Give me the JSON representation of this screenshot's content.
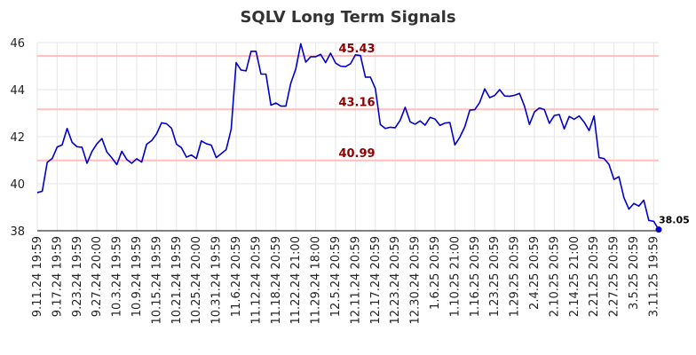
{
  "chart_data": {
    "type": "line",
    "title": "SQLV Long Term Signals",
    "xlabel": "",
    "ylabel": "",
    "ylim": [
      38,
      46
    ],
    "yticks": [
      38,
      40,
      42,
      44,
      46
    ],
    "grid": true,
    "x_tick_labels": [
      "9.11.24 19:59",
      "9.17.24 19:59",
      "9.23.24 19:59",
      "9.27.24 20:00",
      "10.3.24 19:59",
      "10.9.24 19:59",
      "10.15.24 19:59",
      "10.21.24 19:59",
      "10.25.24 20:00",
      "10.31.24 19:59",
      "11.6.24 20:59",
      "11.12.24 20:59",
      "11.18.24 20:59",
      "11.22.24 21:00",
      "11.29.24 18:00",
      "12.5.24 20:59",
      "12.11.24 20:59",
      "12.17.24 20:59",
      "12.23.24 20:59",
      "12.30.24 20:59",
      "1.6.25 20:59",
      "1.10.25 21:00",
      "1.16.25 20:59",
      "1.23.25 20:59",
      "1.29.25 20:59",
      "2.4.25 20:59",
      "2.10.25 20:59",
      "2.14.25 21:00",
      "2.21.25 20:59",
      "2.27.25 20:59",
      "3.5.25 20:59",
      "3.11.25 19:59"
    ],
    "x_tick_index": [
      0,
      4,
      8,
      12,
      16,
      20,
      24,
      28,
      32,
      36,
      40,
      44,
      48,
      52,
      56,
      60,
      64,
      68,
      72,
      76,
      80,
      84,
      88,
      92,
      96,
      100,
      104,
      108,
      112,
      116,
      120,
      124
    ],
    "reference_lines": [
      {
        "value": 45.43,
        "label": "45.43",
        "color": "#ffbdbd"
      },
      {
        "value": 43.16,
        "label": "43.16",
        "color": "#ffbdbd"
      },
      {
        "value": 40.99,
        "label": "40.99",
        "color": "#ffbdbd"
      }
    ],
    "last_value_label": "38.05",
    "series": [
      {
        "color": "#0000cc",
        "values": [
          39.62,
          39.68,
          40.91,
          41.07,
          41.56,
          41.65,
          42.35,
          41.76,
          41.57,
          41.55,
          40.87,
          41.37,
          41.7,
          41.92,
          41.35,
          41.1,
          40.81,
          41.38,
          41.03,
          40.87,
          41.06,
          40.92,
          41.68,
          41.83,
          42.12,
          42.59,
          42.55,
          42.36,
          41.68,
          41.53,
          41.13,
          41.22,
          41.07,
          41.82,
          41.7,
          41.64,
          41.11,
          41.28,
          41.45,
          42.32,
          45.15,
          44.83,
          44.8,
          45.63,
          45.63,
          44.66,
          44.66,
          43.34,
          43.43,
          43.3,
          43.3,
          44.28,
          44.88,
          45.95,
          45.17,
          45.4,
          45.4,
          45.5,
          45.15,
          45.55,
          45.13,
          45.0,
          44.98,
          45.1,
          45.48,
          45.45,
          44.53,
          44.53,
          44.05,
          42.52,
          42.35,
          42.4,
          42.38,
          42.7,
          43.25,
          42.63,
          42.53,
          42.67,
          42.49,
          42.82,
          42.75,
          42.48,
          42.58,
          42.6,
          41.65,
          41.98,
          42.42,
          43.13,
          43.15,
          43.46,
          44.03,
          43.66,
          43.75,
          44.0,
          43.73,
          43.72,
          43.76,
          43.84,
          43.3,
          42.52,
          43.05,
          43.22,
          43.15,
          42.57,
          42.9,
          42.94,
          42.33,
          42.86,
          42.74,
          42.88,
          42.62,
          42.26,
          42.88,
          41.11,
          41.07,
          40.82,
          40.18,
          40.3,
          39.41,
          38.92,
          39.16,
          39.05,
          39.3,
          38.44,
          38.4,
          38.05
        ]
      }
    ]
  }
}
